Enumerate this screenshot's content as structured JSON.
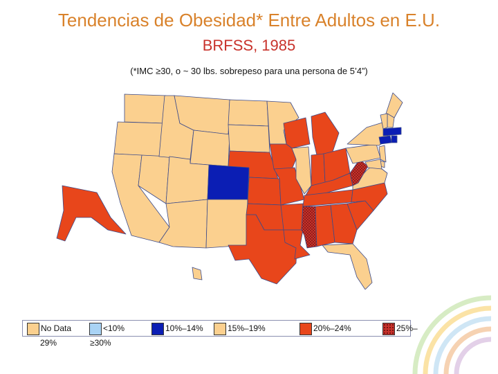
{
  "title": "Tendencias de Obesidad* Entre Adultos en E.U.",
  "subtitle": "BRFSS, 1985",
  "note": "(*IMC ≥30, o ~ 30 lbs. sobrepeso para una persona de 5’4”)",
  "colors": {
    "no_data": "#fbd08f",
    "lt10": "#a9d3f5",
    "10_14": "#0b1eb4",
    "15_19": "#fbd08f",
    "20_24": "#e8461b",
    "25_29": "#c8322b",
    "border": "#3b4a8a"
  },
  "legend": [
    {
      "label": "No Data",
      "color": "#fbd08f",
      "pattern": false
    },
    {
      "label": "<10%",
      "color": "#a9d3f5",
      "pattern": false
    },
    {
      "label": "10%–14%",
      "color": "#0b1eb4",
      "pattern": false
    },
    {
      "label": "15%–19%",
      "color": "#fbd08f",
      "pattern": false
    },
    {
      "label": "20%–24%",
      "color": "#e8461b",
      "pattern": false
    },
    {
      "label": "25%–",
      "color": "#c8322b",
      "pattern": true
    }
  ],
  "legend_wrap": [
    "29%",
    "≥30%"
  ],
  "states": [
    {
      "name": "WA",
      "category": "No Data"
    },
    {
      "name": "OR",
      "category": "No Data"
    },
    {
      "name": "CA",
      "category": "No Data"
    },
    {
      "name": "NV",
      "category": "No Data"
    },
    {
      "name": "ID",
      "category": "No Data"
    },
    {
      "name": "MT",
      "category": "No Data"
    },
    {
      "name": "WY",
      "category": "No Data"
    },
    {
      "name": "UT",
      "category": "No Data"
    },
    {
      "name": "AZ",
      "category": "No Data"
    },
    {
      "name": "CO",
      "category": "10%–14%"
    },
    {
      "name": "NM",
      "category": "No Data"
    },
    {
      "name": "ND",
      "category": "No Data"
    },
    {
      "name": "SD",
      "category": "No Data"
    },
    {
      "name": "NE",
      "category": "20%–24%"
    },
    {
      "name": "KS",
      "category": "20%–24%"
    },
    {
      "name": "OK",
      "category": "20%–24%"
    },
    {
      "name": "TX",
      "category": "20%–24%"
    },
    {
      "name": "MN",
      "category": "No Data"
    },
    {
      "name": "IA",
      "category": "20%–24%"
    },
    {
      "name": "MO",
      "category": "20%–24%"
    },
    {
      "name": "AR",
      "category": "20%–24%"
    },
    {
      "name": "LA",
      "category": "20%–24%"
    },
    {
      "name": "WI",
      "category": "20%–24%"
    },
    {
      "name": "IL",
      "category": "No Data"
    },
    {
      "name": "MI",
      "category": "20%–24%"
    },
    {
      "name": "IN",
      "category": "20%–24%"
    },
    {
      "name": "OH",
      "category": "20%–24%"
    },
    {
      "name": "KY",
      "category": "20%–24%"
    },
    {
      "name": "TN",
      "category": "20%–24%"
    },
    {
      "name": "MS",
      "category": "25%–"
    },
    {
      "name": "AL",
      "category": "20%–24%"
    },
    {
      "name": "GA",
      "category": "20%–24%"
    },
    {
      "name": "FL",
      "category": "No Data"
    },
    {
      "name": "SC",
      "category": "20%–24%"
    },
    {
      "name": "NC",
      "category": "20%–24%"
    },
    {
      "name": "VA",
      "category": "No Data"
    },
    {
      "name": "WV",
      "category": "25%–"
    },
    {
      "name": "PA",
      "category": "No Data"
    },
    {
      "name": "NY",
      "category": "No Data"
    },
    {
      "name": "ME",
      "category": "No Data"
    },
    {
      "name": "NH",
      "category": "No Data"
    },
    {
      "name": "VT",
      "category": "No Data"
    },
    {
      "name": "MA",
      "category": "10%–14%"
    },
    {
      "name": "CT",
      "category": "10%–14%"
    },
    {
      "name": "RI",
      "category": "10%–14%"
    },
    {
      "name": "NJ",
      "category": "No Data"
    },
    {
      "name": "DE",
      "category": "No Data"
    },
    {
      "name": "MD",
      "category": "No Data"
    },
    {
      "name": "AK",
      "category": "20%–24%"
    },
    {
      "name": "HI",
      "category": "No Data"
    }
  ]
}
